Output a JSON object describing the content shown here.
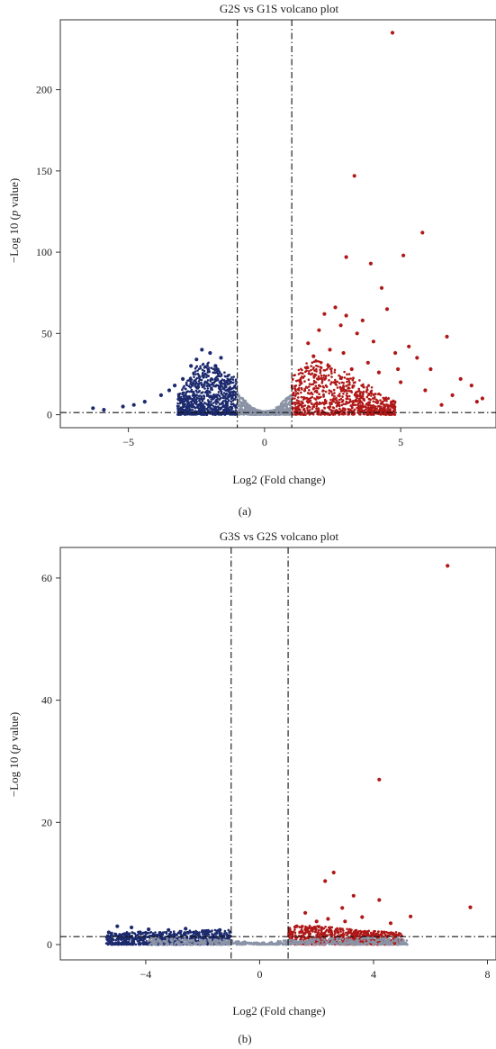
{
  "colors": {
    "up": "#b01818",
    "down": "#1c2a6e",
    "ns": "#8b94a6",
    "threshold_line": "#111111",
    "frame": "#333333"
  },
  "chart_data": [
    {
      "type": "scatter",
      "panel_label": "(a)",
      "title": "G2S vs G1S volcano plot",
      "xlabel": "Log2 (Fold change)",
      "ylabel_prefix": "−Log 10 (",
      "ylabel_italic": "p",
      "ylabel_suffix": " value)",
      "xlim": [
        -7.5,
        8.5
      ],
      "ylim": [
        -8,
        243
      ],
      "xticks": [
        -5,
        0,
        5
      ],
      "yticks": [
        0,
        50,
        100,
        150,
        200
      ],
      "fold_change_thresholds": [
        -1,
        1
      ],
      "pvalue_threshold": 1.3,
      "grid": false,
      "legend": "none",
      "series": [
        {
          "class": "up",
          "points": [
            [
              4.7,
              235
            ],
            [
              3.3,
              147
            ],
            [
              5.8,
              112
            ],
            [
              3.0,
              97
            ],
            [
              3.9,
              93
            ],
            [
              5.1,
              98
            ],
            [
              4.3,
              78
            ],
            [
              4.5,
              65
            ],
            [
              3.6,
              58
            ],
            [
              6.7,
              48
            ],
            [
              2.6,
              66
            ],
            [
              3.0,
              61
            ],
            [
              2.2,
              62
            ],
            [
              2.8,
              55
            ],
            [
              3.4,
              50
            ],
            [
              4.0,
              45
            ],
            [
              5.3,
              42
            ],
            [
              1.6,
              44
            ],
            [
              2.0,
              52
            ],
            [
              4.8,
              38
            ],
            [
              5.6,
              35
            ],
            [
              6.1,
              28
            ],
            [
              7.2,
              22
            ],
            [
              7.6,
              18
            ],
            [
              8.0,
              10
            ],
            [
              7.8,
              8
            ],
            [
              6.9,
              12
            ],
            [
              6.5,
              6
            ],
            [
              4.9,
              28
            ],
            [
              3.8,
              32
            ],
            [
              2.4,
              40
            ],
            [
              1.8,
              36
            ],
            [
              2.9,
              38
            ],
            [
              5.0,
              20
            ],
            [
              5.9,
              15
            ],
            [
              4.2,
              26
            ],
            [
              3.2,
              28
            ]
          ]
        },
        {
          "class": "down",
          "points": [
            [
              -2.3,
              40
            ],
            [
              -2.0,
              38
            ],
            [
              -1.6,
              35
            ],
            [
              -2.7,
              30
            ],
            [
              -3.0,
              22
            ],
            [
              -3.3,
              18
            ],
            [
              -3.8,
              12
            ],
            [
              -4.4,
              8
            ],
            [
              -5.2,
              5
            ],
            [
              -5.9,
              3
            ],
            [
              -6.3,
              4
            ],
            [
              -2.5,
              34
            ],
            [
              -1.8,
              30
            ],
            [
              -3.5,
              15
            ],
            [
              -4.8,
              6
            ]
          ]
        }
      ],
      "clouds": [
        {
          "class": "up",
          "x_start": 1.0,
          "x_end": 4.8,
          "curve": [
            [
              1.0,
              24
            ],
            [
              1.5,
              32
            ],
            [
              2.0,
              34
            ],
            [
              2.5,
              30
            ],
            [
              3.0,
              26
            ],
            [
              3.5,
              22
            ],
            [
              4.0,
              16
            ],
            [
              4.8,
              8
            ]
          ]
        },
        {
          "class": "down",
          "x_start": -3.2,
          "x_end": -1.0,
          "curve": [
            [
              -3.2,
              12
            ],
            [
              -2.8,
              22
            ],
            [
              -2.4,
              32
            ],
            [
              -2.0,
              32
            ],
            [
              -1.5,
              27
            ],
            [
              -1.0,
              22
            ]
          ]
        },
        {
          "class": "ns",
          "x_start": -1.0,
          "x_end": 1.0,
          "curve": [
            [
              -1.0,
              14
            ],
            [
              -0.6,
              7
            ],
            [
              -0.3,
              3
            ],
            [
              0.0,
              2
            ],
            [
              0.3,
              3
            ],
            [
              0.6,
              7
            ],
            [
              1.0,
              14
            ]
          ]
        }
      ]
    },
    {
      "type": "scatter",
      "panel_label": "(b)",
      "title": "G3S vs G2S volcano plot",
      "xlabel": "Log2 (Fold change)",
      "ylabel_prefix": "−Log 10 (",
      "ylabel_italic": "p",
      "ylabel_suffix": " value)",
      "xlim": [
        -7,
        8.3
      ],
      "ylim": [
        -2.5,
        65
      ],
      "xticks": [
        -4,
        0,
        4,
        8
      ],
      "yticks": [
        0,
        20,
        40,
        60
      ],
      "fold_change_thresholds": [
        -1,
        1
      ],
      "pvalue_threshold": 1.3,
      "grid": false,
      "legend": "none",
      "series": [
        {
          "class": "up",
          "points": [
            [
              6.6,
              62
            ],
            [
              4.2,
              27
            ],
            [
              2.6,
              11.8
            ],
            [
              2.3,
              10.4
            ],
            [
              3.3,
              8
            ],
            [
              4.2,
              7.3
            ],
            [
              7.4,
              6.1
            ],
            [
              2.9,
              6
            ],
            [
              5.3,
              4.6
            ],
            [
              1.6,
              5.2
            ],
            [
              3.6,
              4.5
            ],
            [
              2.0,
              3.8
            ],
            [
              4.6,
              3.5
            ],
            [
              3.0,
              3.8
            ],
            [
              1.3,
              3
            ],
            [
              2.4,
              4.2
            ]
          ]
        },
        {
          "class": "down",
          "points": [
            [
              -5.0,
              3
            ],
            [
              -4.5,
              2.8
            ],
            [
              -3.9,
              2.5
            ],
            [
              -3.2,
              2.4
            ],
            [
              -2.6,
              2.6
            ],
            [
              -2.0,
              2.2
            ],
            [
              -1.4,
              2.4
            ],
            [
              -5.3,
              2
            ],
            [
              -4.2,
              2
            ],
            [
              -3.5,
              1.9
            ]
          ]
        }
      ],
      "clouds": [
        {
          "class": "up",
          "x_start": 1.0,
          "x_end": 5.0,
          "curve": [
            [
              1.0,
              2.8
            ],
            [
              1.6,
              3.2
            ],
            [
              2.2,
              3.0
            ],
            [
              3.0,
              2.6
            ],
            [
              4.0,
              2.2
            ],
            [
              5.0,
              2.0
            ]
          ]
        },
        {
          "class": "down",
          "x_start": -5.4,
          "x_end": -1.0,
          "curve": [
            [
              -5.4,
              1.9
            ],
            [
              -4.5,
              2.1
            ],
            [
              -3.5,
              2.0
            ],
            [
              -2.5,
              2.3
            ],
            [
              -1.5,
              2.4
            ],
            [
              -1.0,
              2.5
            ]
          ]
        },
        {
          "class": "ns",
          "x_start": -4.0,
          "x_end": 5.2,
          "curve": [
            [
              -4.0,
              1.2
            ],
            [
              -3.0,
              1.0
            ],
            [
              -2.0,
              0.9
            ],
            [
              -1.0,
              0.8
            ],
            [
              -0.5,
              0.5
            ],
            [
              0.0,
              0.3
            ],
            [
              0.5,
              0.5
            ],
            [
              1.0,
              0.8
            ],
            [
              2.0,
              1.0
            ],
            [
              3.0,
              1.1
            ],
            [
              4.0,
              1.2
            ],
            [
              5.2,
              1.2
            ]
          ]
        }
      ]
    }
  ]
}
